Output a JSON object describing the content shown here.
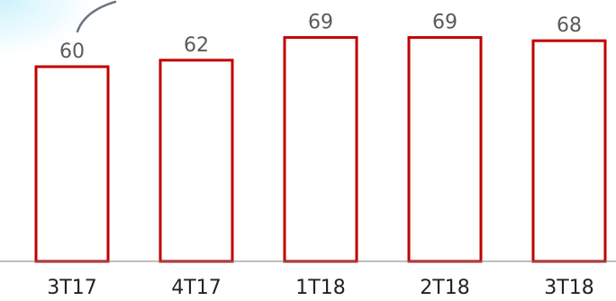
{
  "chart_data": {
    "type": "bar",
    "categories": [
      "3T17",
      "4T17",
      "1T18",
      "2T18",
      "3T18"
    ],
    "values": [
      60,
      62,
      69,
      69,
      68
    ],
    "value_labels": [
      "60",
      "62",
      "69",
      "69",
      "68"
    ],
    "title": "",
    "xlabel": "",
    "ylabel": "",
    "ylim": [
      0,
      75
    ],
    "grid": false,
    "legend": "none",
    "bar_fill": "#ffffff",
    "bar_stroke": "#c00000",
    "axis_color": "#7f7f7f",
    "decoration_colors": {
      "swoosh_stroke": "#6e7480",
      "glow": "#d6f4fb"
    }
  }
}
